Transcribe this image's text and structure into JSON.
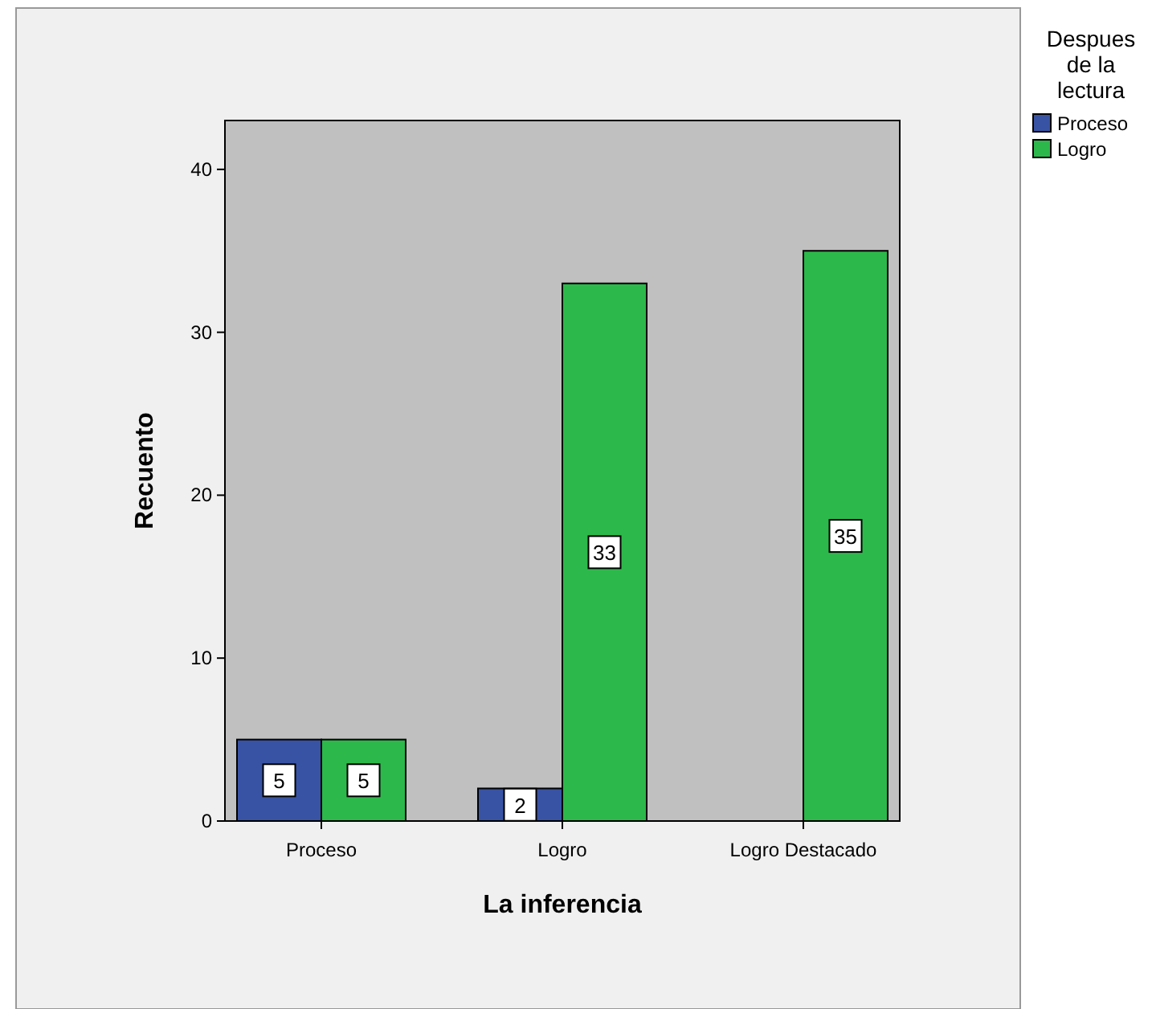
{
  "chart_data": {
    "type": "bar",
    "xlabel": "La inferencia",
    "ylabel": "Recuento",
    "legend_title": "Despues de la lectura",
    "categories": [
      "Proceso",
      "Logro",
      "Logro Destacado"
    ],
    "series": [
      {
        "name": "Proceso",
        "color": "#3953a4",
        "values": [
          5,
          2,
          null
        ]
      },
      {
        "name": "Logro",
        "color": "#2db84b",
        "values": [
          5,
          33,
          35
        ]
      }
    ],
    "ylim": [
      0,
      43
    ],
    "yticks": [
      0,
      10,
      20,
      30,
      40
    ],
    "grid": false,
    "legend": "top right",
    "data_labels": true
  }
}
